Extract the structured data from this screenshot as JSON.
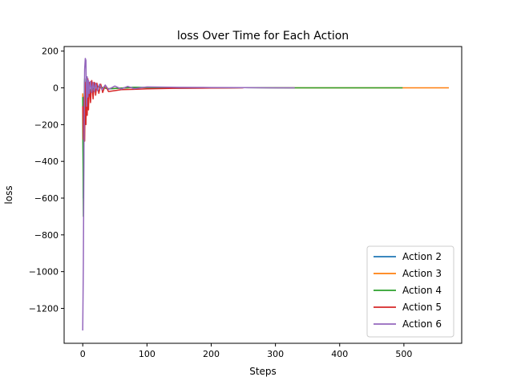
{
  "chart_data": {
    "type": "line",
    "title": "loss Over Time for Each Action",
    "xlabel": "Steps",
    "ylabel": "loss",
    "xlim": [
      -29,
      590
    ],
    "ylim": [
      -1390,
      225
    ],
    "xticks": [
      0,
      100,
      200,
      300,
      400,
      500
    ],
    "yticks": [
      200,
      0,
      -200,
      -400,
      -600,
      -800,
      -1000,
      -1200
    ],
    "ytick_labels": [
      "200",
      "0",
      "−200",
      "−400",
      "−600",
      "−800",
      "−1000",
      "−1200"
    ],
    "grid": false,
    "legend_position": "lower-right",
    "series": [
      {
        "name": "Action 2",
        "color": "#1f77b4",
        "x": [
          0,
          1,
          2,
          3,
          5,
          8,
          12,
          20,
          40,
          80,
          150,
          250,
          330
        ],
        "y": [
          -40,
          -600,
          -150,
          40,
          -60,
          20,
          -20,
          10,
          -5,
          3,
          -2,
          1,
          0
        ]
      },
      {
        "name": "Action 3",
        "color": "#ff7f0e",
        "x": [
          0,
          1,
          2,
          3,
          5,
          8,
          12,
          20,
          40,
          80,
          150,
          250,
          350,
          450,
          500,
          570
        ],
        "y": [
          -30,
          -500,
          -120,
          30,
          -50,
          15,
          -15,
          8,
          -4,
          2,
          -1,
          1,
          0,
          0,
          0,
          0
        ]
      },
      {
        "name": "Action 4",
        "color": "#2ca02c",
        "x": [
          0,
          1,
          2,
          3,
          5,
          8,
          12,
          20,
          40,
          80,
          150,
          250,
          330,
          400,
          498
        ],
        "y": [
          -50,
          -700,
          -100,
          50,
          -40,
          25,
          -18,
          9,
          -5,
          3,
          -1,
          1,
          0,
          0,
          0
        ]
      },
      {
        "name": "Action 5",
        "color": "#d62728",
        "x": [
          0,
          1,
          2,
          3,
          4,
          5,
          6,
          7,
          8,
          9,
          10,
          12,
          14,
          16,
          18,
          20,
          22,
          25,
          28,
          31,
          35,
          40,
          50,
          60,
          80,
          100,
          150,
          200,
          250
        ],
        "y": [
          -100,
          -280,
          -50,
          -290,
          30,
          -200,
          40,
          -150,
          50,
          -120,
          30,
          -80,
          40,
          -60,
          30,
          -40,
          25,
          -30,
          20,
          -25,
          15,
          -20,
          -15,
          -10,
          -8,
          -5,
          -2,
          -1,
          0
        ]
      },
      {
        "name": "Action 6",
        "color": "#9467bd",
        "x": [
          0,
          1,
          2,
          3,
          4,
          5,
          6,
          7,
          8,
          9,
          10,
          12,
          14,
          16,
          18,
          20,
          23,
          26,
          30,
          35,
          40,
          50,
          60,
          70,
          80,
          100,
          150,
          200,
          250,
          300,
          330
        ],
        "y": [
          -1320,
          -950,
          -300,
          100,
          160,
          150,
          -100,
          60,
          -50,
          40,
          -30,
          35,
          -25,
          30,
          -20,
          25,
          -15,
          20,
          -10,
          15,
          -8,
          10,
          -6,
          8,
          -4,
          5,
          3,
          2,
          1,
          0,
          0
        ]
      }
    ]
  }
}
